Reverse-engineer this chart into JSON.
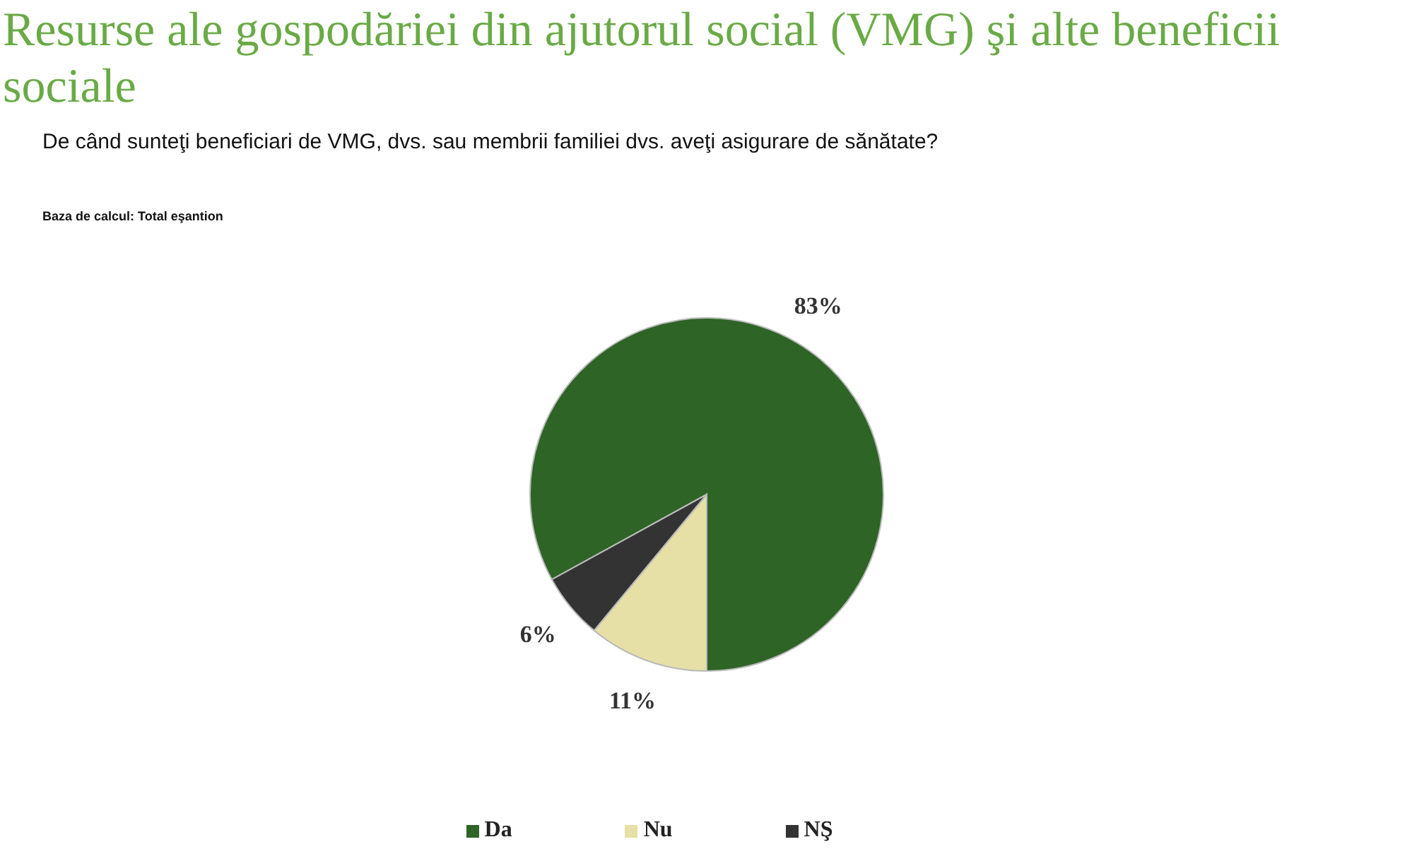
{
  "chart_data": {
    "type": "pie",
    "title": "Resurse ale gospodăriei din ajutorul social (VMG) şi alte beneficii sociale",
    "subtitle": "De când sunteţi beneficiari de VMG, dvs. sau membrii familiei dvs. aveţi asigurare de sănătate?",
    "annotations": [
      "Baza de calcul: Total eşantion"
    ],
    "categories": [
      "Da",
      "Nu",
      "NŞ"
    ],
    "values": [
      83,
      11,
      6
    ],
    "colors": [
      "#2e6426",
      "#e6dfa6",
      "#333333"
    ],
    "value_labels": [
      "83%",
      "11%",
      "6%"
    ],
    "legend": "bottom"
  }
}
